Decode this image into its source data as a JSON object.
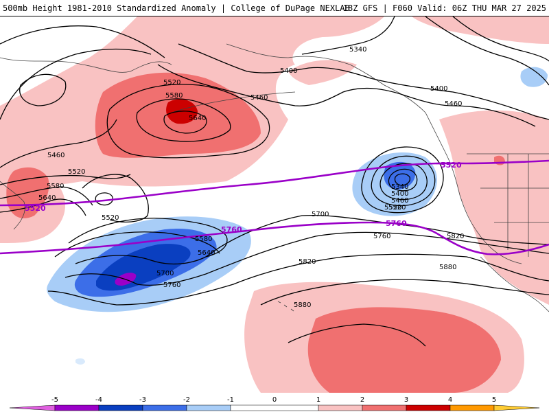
{
  "header": {
    "title": "500mb Height 1981-2010 Standardized Anomaly | College of DuPage NEXLAB",
    "run": "18Z GFS | F060 Valid: 06Z THU MAR 27 2025"
  },
  "colors": {
    "neg5": "#e060e0",
    "neg4": "#9a00c8",
    "neg3": "#0a3fc0",
    "neg2": "#3c6ee8",
    "neg1": "#a8cdf7",
    "neg0": "#d9eafc",
    "pos0": "#fbe0e0",
    "pos1": "#f9c2c2",
    "pos2": "#f07070",
    "pos3": "#cc0000",
    "pos4": "#ff9900",
    "pos5": "#ffcc33",
    "contour": "#000000",
    "contour_highlight": "#9a00c8",
    "coast": "#404040"
  },
  "contour_labels": [
    "5340",
    "5400",
    "5400",
    "5460",
    "5460",
    "5520",
    "5580",
    "5640",
    "5460",
    "5520",
    "5580",
    "5640",
    "5520",
    "5520",
    "5580",
    "5640",
    "5700",
    "5760",
    "5700",
    "5760",
    "5820",
    "5820",
    "5880",
    "5880",
    "5340",
    "5400",
    "5460",
    "5520"
  ],
  "highlight_labels": [
    "5520",
    "5520",
    "5760",
    "5760"
  ],
  "colorbar": {
    "ticks": [
      "-5",
      "-4",
      "-3",
      "-2",
      "-1",
      "0",
      "1",
      "2",
      "3",
      "4",
      "5"
    ]
  }
}
